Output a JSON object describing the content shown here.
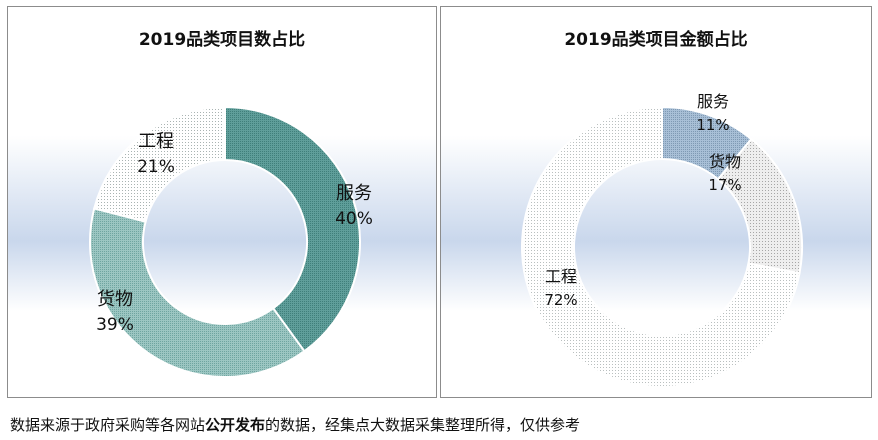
{
  "chart_data": [
    {
      "type": "pie",
      "variant": "donut",
      "title": "2019品类项目数占比",
      "categories": [
        "服务",
        "货物",
        "工程"
      ],
      "values": [
        40,
        39,
        21
      ],
      "labels": [
        "40%",
        "39%",
        "21%"
      ]
    },
    {
      "type": "pie",
      "variant": "donut",
      "title": "2019品类项目金额占比",
      "categories": [
        "服务",
        "货物",
        "工程"
      ],
      "values": [
        11,
        17,
        72
      ],
      "labels": [
        "11%",
        "17%",
        "72%"
      ]
    }
  ],
  "colors": {
    "服务": "#5f9e9a",
    "货物_left": "#9cc6c2",
    "货物_right": "#d2d2d2",
    "工程": "#d9dcdc",
    "服务_right": "#a8bfd6"
  },
  "footnote": {
    "before": "数据来源于政府采购等各网站",
    "bold": "公开发布",
    "after": "的数据，经集点大数据采集整理所得，仅供参考"
  }
}
